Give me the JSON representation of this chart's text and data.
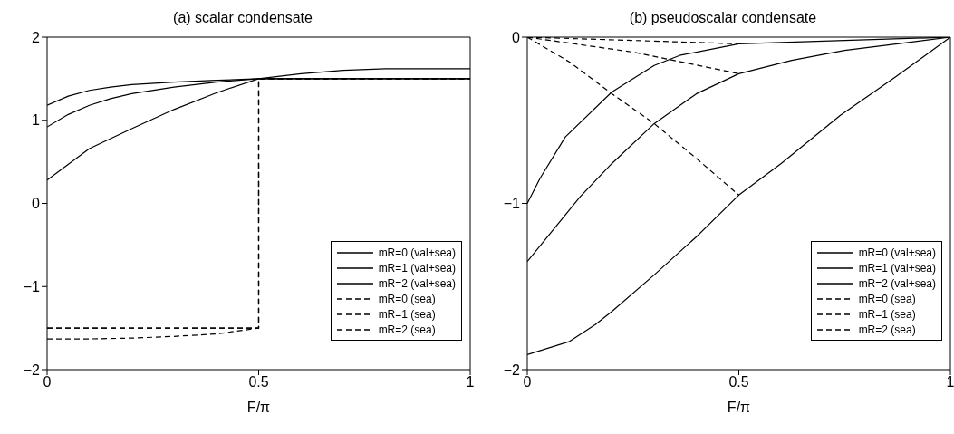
{
  "chart_data": [
    {
      "type": "line",
      "title": "(a) scalar condensate",
      "xlabel": "F/π",
      "xlim": [
        0,
        1
      ],
      "xticks": [
        0,
        0.5,
        1
      ],
      "ylim": [
        -2,
        2
      ],
      "yticks": [
        -2,
        -1,
        0,
        1,
        2
      ],
      "legend": "bottom right",
      "series": [
        {
          "name": "mR=0 (val+sea)",
          "color": "#000000",
          "line_style": "solid",
          "x": [
            0,
            0.05,
            0.1,
            0.15,
            0.2,
            0.3,
            0.4,
            0.5,
            0.75,
            1
          ],
          "values": [
            1.18,
            1.29,
            1.36,
            1.4,
            1.43,
            1.46,
            1.48,
            1.5,
            1.5,
            1.5
          ]
        },
        {
          "name": "mR=1 (val+sea)",
          "color": "#000000",
          "line_style": "solid",
          "x": [
            0,
            0.05,
            0.1,
            0.15,
            0.2,
            0.3,
            0.4,
            0.5,
            0.75,
            1
          ],
          "values": [
            0.92,
            1.07,
            1.18,
            1.26,
            1.32,
            1.4,
            1.46,
            1.5,
            1.5,
            1.5
          ]
        },
        {
          "name": "mR=2 (val+sea)",
          "color": "#000000",
          "line_style": "solid",
          "x": [
            0,
            0.1,
            0.2,
            0.3,
            0.4,
            0.5,
            0.6,
            0.7,
            0.8,
            0.9,
            1
          ],
          "values": [
            0.28,
            0.66,
            0.9,
            1.13,
            1.33,
            1.5,
            1.56,
            1.6,
            1.62,
            1.62,
            1.62
          ]
        },
        {
          "name": "mR=0 (sea)",
          "color": "#000000",
          "line_style": "dashed",
          "x": [
            0,
            0.5,
            0.5,
            1
          ],
          "values": [
            -1.5,
            -1.5,
            1.5,
            1.5
          ]
        },
        {
          "name": "mR=1 (sea)",
          "color": "#000000",
          "line_style": "dashed",
          "x": [
            0,
            0.5,
            0.5,
            1
          ],
          "values": [
            -1.5,
            -1.5,
            1.5,
            1.5
          ]
        },
        {
          "name": "mR=2 (sea)",
          "color": "#000000",
          "line_style": "dashed",
          "x": [
            0,
            0.1,
            0.2,
            0.3,
            0.4,
            0.5,
            0.5,
            1
          ],
          "values": [
            -1.63,
            -1.63,
            -1.62,
            -1.6,
            -1.57,
            -1.5,
            1.5,
            1.5
          ]
        }
      ]
    },
    {
      "type": "line",
      "title": "(b) pseudoscalar condensate",
      "xlabel": "F/π",
      "xlim": [
        0,
        1
      ],
      "xticks": [
        0,
        0.5,
        1
      ],
      "ylim": [
        -2,
        0
      ],
      "yticks": [
        -2,
        -1,
        0
      ],
      "legend": "bottom right",
      "series": [
        {
          "name": "mR=0 (val+sea)",
          "color": "#000000",
          "line_style": "solid",
          "x": [
            0,
            0.03,
            0.09,
            0.2,
            0.3,
            0.36,
            0.5,
            0.75,
            1
          ],
          "values": [
            -1.0,
            -0.85,
            -0.6,
            -0.33,
            -0.17,
            -0.11,
            -0.04,
            -0.02,
            0
          ]
        },
        {
          "name": "mR=1 (val+sea)",
          "color": "#000000",
          "line_style": "solid",
          "x": [
            0,
            0.125,
            0.2,
            0.3,
            0.4,
            0.5,
            0.625,
            0.75,
            0.875,
            1
          ],
          "values": [
            -1.35,
            -0.96,
            -0.76,
            -0.52,
            -0.34,
            -0.22,
            -0.14,
            -0.08,
            -0.04,
            0
          ]
        },
        {
          "name": "mR=2 (val+sea)",
          "color": "#000000",
          "line_style": "solid",
          "x": [
            0,
            0.1,
            0.16,
            0.2,
            0.3,
            0.4,
            0.5,
            0.6,
            0.74,
            0.87,
            1
          ],
          "values": [
            -1.91,
            -1.83,
            -1.73,
            -1.65,
            -1.43,
            -1.2,
            -0.95,
            -0.76,
            -0.47,
            -0.24,
            0
          ]
        },
        {
          "name": "mR=0 (sea)",
          "color": "#000000",
          "line_style": "dashed",
          "x": [
            0,
            0.25,
            0.5
          ],
          "values": [
            0,
            -0.02,
            -0.04
          ]
        },
        {
          "name": "mR=1 (sea)",
          "color": "#000000",
          "line_style": "dashed",
          "x": [
            0,
            0.25,
            0.5
          ],
          "values": [
            0,
            -0.09,
            -0.22
          ]
        },
        {
          "name": "mR=2 (sea)",
          "color": "#000000",
          "line_style": "dashed",
          "x": [
            0,
            0.1,
            0.2,
            0.3,
            0.4,
            0.5
          ],
          "values": [
            0,
            -0.15,
            -0.34,
            -0.52,
            -0.73,
            -0.95
          ]
        }
      ]
    }
  ]
}
